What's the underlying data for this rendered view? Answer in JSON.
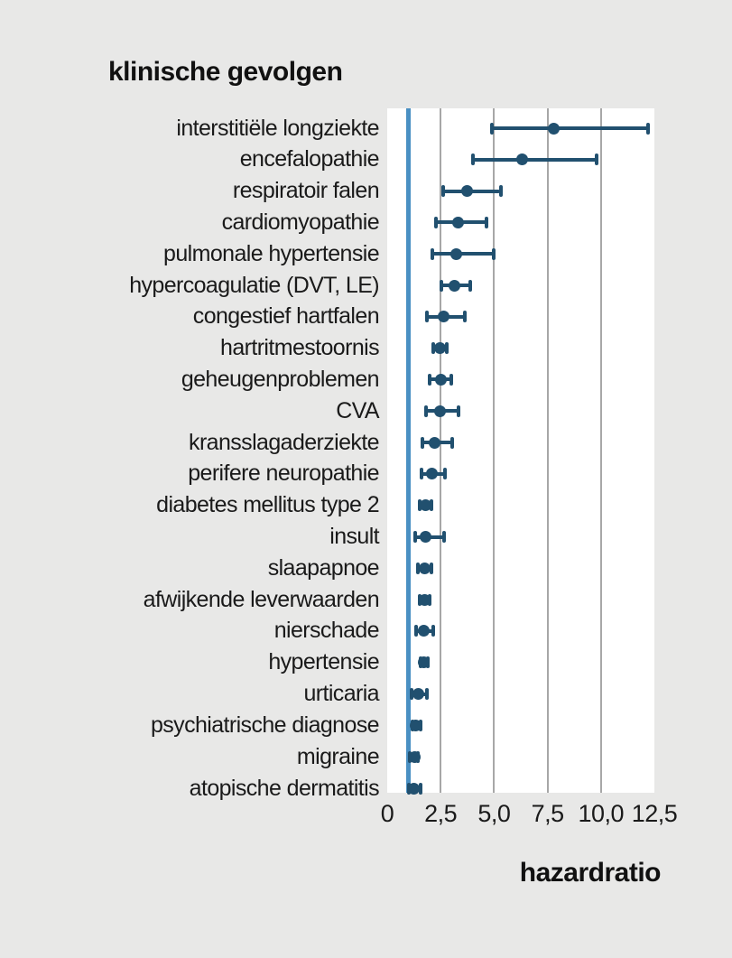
{
  "colors": {
    "background": "#e8e8e7",
    "plot_background": "#ffffff",
    "gridline": "#a7a7a7",
    "reference_line": "#4a90c3",
    "marker": "#21506f",
    "text": "#1a1a1a"
  },
  "chart_data": {
    "type": "scatter",
    "variant": "forest-plot-horizontal",
    "title": "klinische gevolgen",
    "xlabel": "hazardratio",
    "ylabel": "",
    "xlim": [
      0,
      12.5
    ],
    "grid": "vertical-only",
    "gridlines_x": [
      2.5,
      5,
      7.5,
      10
    ],
    "reference_line_x": 1,
    "x_ticks": [
      {
        "value": 0,
        "label": "0"
      },
      {
        "value": 2.5,
        "label": "2,5"
      },
      {
        "value": 5,
        "label": "5,0"
      },
      {
        "value": 7.5,
        "label": "7,5"
      },
      {
        "value": 10,
        "label": "10,0"
      },
      {
        "value": 12.5,
        "label": "12,5"
      }
    ],
    "rows": [
      {
        "label": "interstitiële longziekte",
        "hr": 7.8,
        "ci_low": 4.9,
        "ci_high": 12.2
      },
      {
        "label": "encefalopathie",
        "hr": 6.3,
        "ci_low": 4.0,
        "ci_high": 9.8
      },
      {
        "label": "respiratoir falen",
        "hr": 3.75,
        "ci_low": 2.6,
        "ci_high": 5.3
      },
      {
        "label": "cardiomyopathie",
        "hr": 3.3,
        "ci_low": 2.3,
        "ci_high": 4.65
      },
      {
        "label": "pulmonale hypertensie",
        "hr": 3.25,
        "ci_low": 2.1,
        "ci_high": 5.0
      },
      {
        "label": "hypercoagulatie (DVT, LE)",
        "hr": 3.15,
        "ci_low": 2.55,
        "ci_high": 3.9
      },
      {
        "label": "congestief hartfalen",
        "hr": 2.65,
        "ci_low": 1.85,
        "ci_high": 3.65
      },
      {
        "label": "hartritmestoornis",
        "hr": 2.45,
        "ci_low": 2.15,
        "ci_high": 2.8
      },
      {
        "label": "geheugenproblemen",
        "hr": 2.5,
        "ci_low": 2.0,
        "ci_high": 3.0
      },
      {
        "label": "CVA",
        "hr": 2.45,
        "ci_low": 1.8,
        "ci_high": 3.35
      },
      {
        "label": "kransslagaderziekte",
        "hr": 2.2,
        "ci_low": 1.65,
        "ci_high": 3.05
      },
      {
        "label": "perifere neuropathie",
        "hr": 2.1,
        "ci_low": 1.6,
        "ci_high": 2.7
      },
      {
        "label": "diabetes mellitus type 2",
        "hr": 1.8,
        "ci_low": 1.5,
        "ci_high": 2.05
      },
      {
        "label": "insult",
        "hr": 1.8,
        "ci_low": 1.3,
        "ci_high": 2.65
      },
      {
        "label": "slaapapnoe",
        "hr": 1.75,
        "ci_low": 1.45,
        "ci_high": 2.05
      },
      {
        "label": "afwijkende leverwaarden",
        "hr": 1.75,
        "ci_low": 1.5,
        "ci_high": 2.0
      },
      {
        "label": "nierschade",
        "hr": 1.7,
        "ci_low": 1.35,
        "ci_high": 2.15
      },
      {
        "label": "hypertensie",
        "hr": 1.7,
        "ci_low": 1.55,
        "ci_high": 1.9
      },
      {
        "label": "urticaria",
        "hr": 1.45,
        "ci_low": 1.15,
        "ci_high": 1.85
      },
      {
        "label": "psychiatrische diagnose",
        "hr": 1.35,
        "ci_low": 1.2,
        "ci_high": 1.55
      },
      {
        "label": "migraine",
        "hr": 1.3,
        "ci_low": 1.05,
        "ci_high": 1.45
      },
      {
        "label": "atopische dermatitis",
        "hr": 1.25,
        "ci_low": 1.0,
        "ci_high": 1.55
      }
    ]
  }
}
